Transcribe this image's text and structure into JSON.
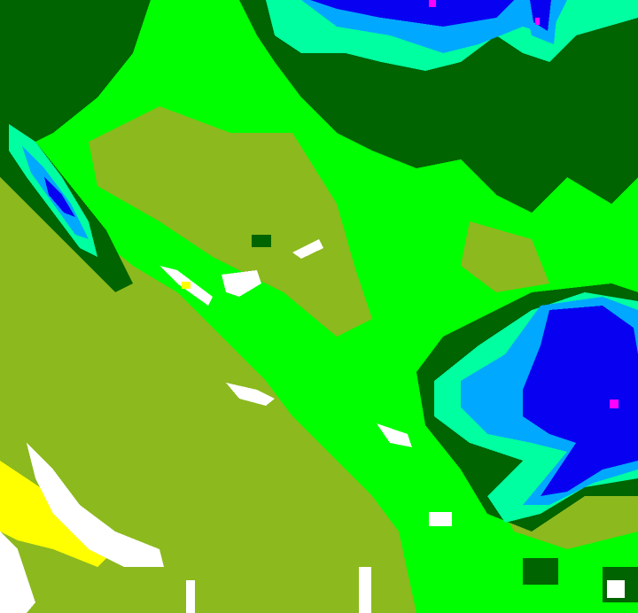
{
  "map": {
    "type": "classified-raster",
    "palette": {
      "base": "#8cb91e",
      "green": "#00ff00",
      "dark_green": "#006400",
      "aquamarine": "#00ffa0",
      "light_blue": "#00a8ff",
      "blue": "#0800f0",
      "magenta": "#ff00ff",
      "yellow": "#ffff00",
      "white": "#ffffff"
    }
  }
}
